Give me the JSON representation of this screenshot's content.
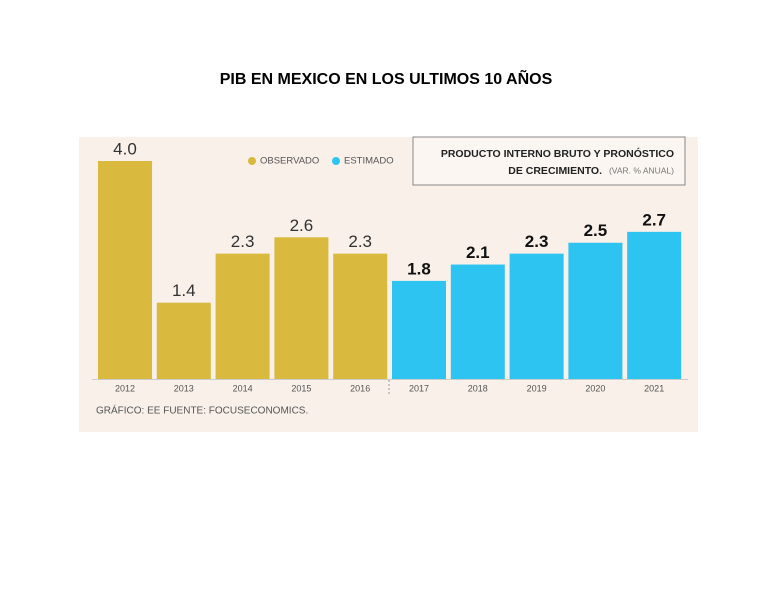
{
  "page": {
    "title": "PIB EN MEXICO EN LOS ULTIMOS 10 AÑOS"
  },
  "chart_data": {
    "type": "bar",
    "title": [
      "PRODUCTO INTERNO BRUTO Y PRONÓSTICO",
      "DE CRECIMIENTO."
    ],
    "subtitle": "(VAR. % ANUAL)",
    "source": "GRÁFICO: EE  FUENTE: FOCUSECONOMICS.",
    "categories": [
      "2012",
      "2013",
      "2014",
      "2015",
      "2016",
      "2017",
      "2018",
      "2019",
      "2020",
      "2021"
    ],
    "series": [
      {
        "name": "OBSERVADO",
        "color": "#d9b93e",
        "values": [
          4.0,
          1.4,
          2.3,
          2.6,
          2.3,
          null,
          null,
          null,
          null,
          null
        ],
        "value_labels": [
          "4.0",
          null,
          null,
          null,
          null,
          null,
          null,
          null,
          null,
          null
        ]
      },
      {
        "name": "ESTIMADO",
        "color": "#2ec4f2",
        "values": [
          null,
          null,
          null,
          null,
          null,
          1.8,
          2.1,
          2.3,
          2.5,
          2.7
        ]
      }
    ]
  }
}
